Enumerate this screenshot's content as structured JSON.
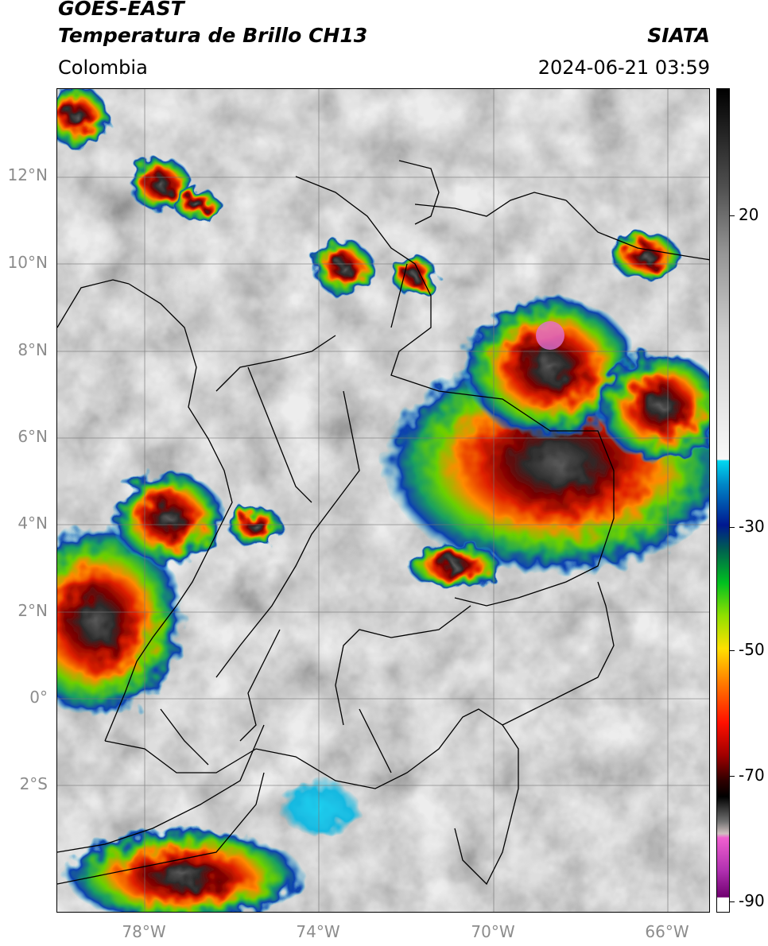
{
  "header": {
    "title_line1": "GOES-EAST",
    "title_line2": "Temperatura de Brillo CH13",
    "region": "Colombia",
    "source": "SIATA",
    "timestamp": "2024-06-21 03:59"
  },
  "map": {
    "lat_labels": [
      "12°N",
      "10°N",
      "8°N",
      "6°N",
      "4°N",
      "2°N",
      "0°",
      "2°S"
    ],
    "lon_labels": [
      "78°W",
      "74°W",
      "70°W",
      "66°W"
    ],
    "extent": {
      "lon_min": -80.0,
      "lon_max": -65.0,
      "lat_min": -5.0,
      "lat_max": 14.0
    },
    "gridlines": true
  },
  "colorbar": {
    "labels": [
      "20",
      "-30",
      "-50",
      "-70",
      "-90"
    ],
    "values": [
      20,
      -30,
      -50,
      -70,
      -90
    ]
  }
}
